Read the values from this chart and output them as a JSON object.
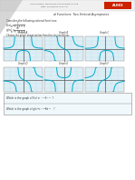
{
  "title_line1": "Polynomial and Rational Functions: Two Vertical Asymptotes",
  "header_course": "Course Name: Precalculus and Problem Solving",
  "bg_color": "#ffffff",
  "text_color": "#222222",
  "graph_bg": "#ddeef5",
  "grid_color": "#a0cce0",
  "curve_color": "#00aacc",
  "axis_color": "#555555",
  "aleks_red": "#cc2200",
  "graph_labels": [
    "Graph A",
    "Graph B",
    "Graph C",
    "Graph D",
    "Graph E",
    "Graph F"
  ],
  "graph_types": [
    "A",
    "B",
    "C",
    "D",
    "E",
    "F"
  ]
}
